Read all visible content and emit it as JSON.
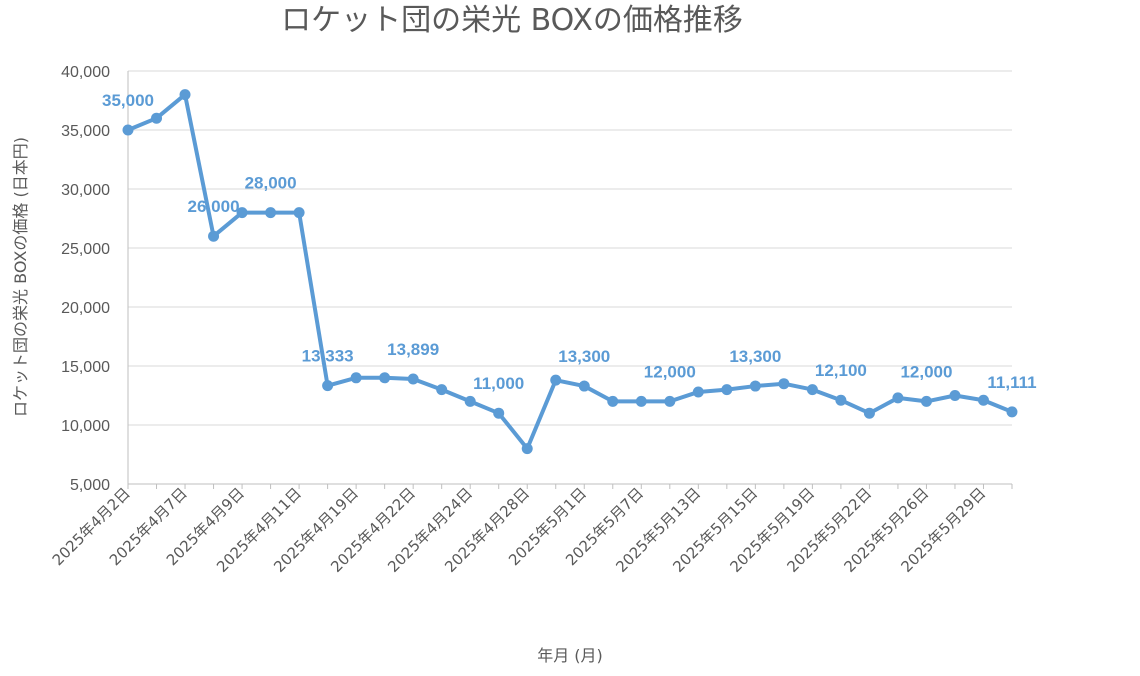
{
  "chart_data": {
    "type": "line",
    "title": "ロケット団の栄光 BOXの価格推移",
    "xlabel": "年月 (月)",
    "ylabel": "ロケット団の栄光 BOXの価格 (日本円)",
    "ylim": [
      5000,
      40000
    ],
    "yticks": [
      5000,
      10000,
      15000,
      20000,
      25000,
      30000,
      35000,
      40000
    ],
    "ytick_labels": [
      "5,000",
      "10,000",
      "15,000",
      "20,000",
      "25,000",
      "30,000",
      "35,000",
      "40,000"
    ],
    "xtick_labels": [
      "2025年4月2日",
      "2025年4月7日",
      "2025年4月9日",
      "2025年4月11日",
      "2025年4月19日",
      "2025年4月22日",
      "2025年4月24日",
      "2025年4月28日",
      "2025年5月1日",
      "2025年5月7日",
      "2025年5月13日",
      "2025年5月15日",
      "2025年5月19日",
      "2025年5月22日",
      "2025年5月26日",
      "2025年5月29日"
    ],
    "color": "#5b9bd5",
    "grid": true,
    "legend": "none",
    "series": [
      {
        "values": [
          35000,
          36000,
          38000,
          26000,
          28000,
          28000,
          28000,
          13333,
          14000,
          14000,
          13899,
          13000,
          12000,
          11000,
          8000,
          13800,
          13300,
          12000,
          12000,
          12000,
          12800,
          13000,
          13300,
          13500,
          13000,
          12100,
          11000,
          12300,
          12000,
          12500,
          12100,
          11111
        ],
        "labels": [
          "35,000",
          "",
          "",
          "26,000",
          "",
          "28,000",
          "",
          "13,333",
          "",
          "",
          "13,899",
          "",
          "",
          "11,000",
          "",
          "",
          "13,300",
          "",
          "",
          "12,000",
          "",
          "",
          "13,300",
          "",
          "",
          "12,100",
          "",
          "",
          "12,000",
          "",
          "",
          "11,111"
        ]
      }
    ]
  }
}
